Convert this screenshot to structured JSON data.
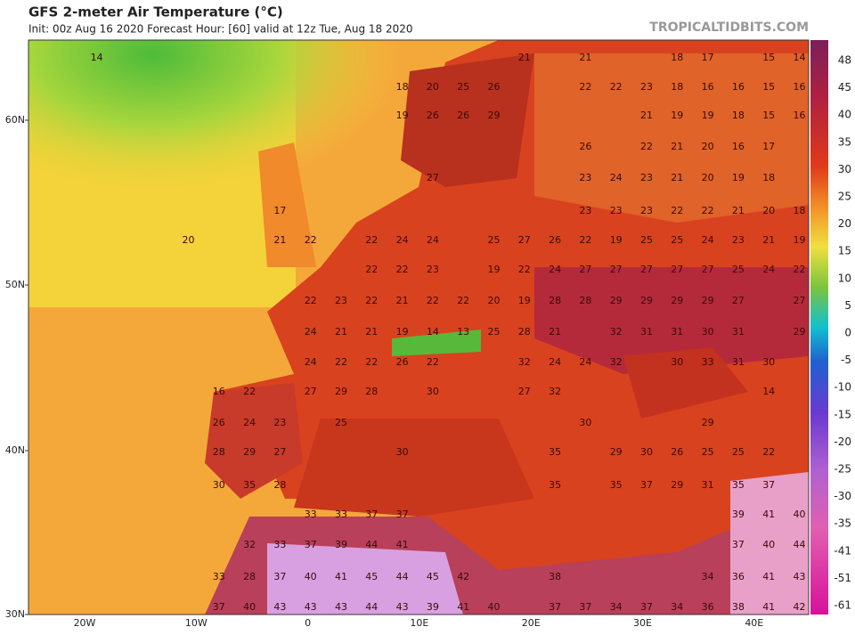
{
  "header": {
    "title": "GFS 2-meter Air Temperature (°C)",
    "subtitle": "Init: 00z Aug 16 2020   Forecast Hour: [60]   valid at 12z Tue, Aug 18 2020",
    "brand": "TROPICALTIDBITS.COM"
  },
  "map": {
    "lat_labels": [
      "60N",
      "50N",
      "40N",
      "30N"
    ],
    "lon_labels": [
      "20W",
      "10W",
      "0",
      "10E",
      "20E",
      "30E",
      "40E"
    ],
    "temperature_rows": [
      [
        null,
        null,
        14,
        null,
        null,
        null,
        null,
        null,
        null,
        null,
        null,
        null,
        null,
        null,
        null,
        null,
        21,
        null,
        21,
        null,
        null,
        18,
        17,
        null,
        15,
        14
      ],
      [
        null,
        null,
        null,
        null,
        null,
        null,
        null,
        null,
        null,
        null,
        null,
        null,
        18,
        20,
        25,
        26,
        null,
        null,
        22,
        22,
        23,
        18,
        16,
        16,
        15,
        16
      ],
      [
        null,
        null,
        null,
        null,
        null,
        null,
        null,
        null,
        null,
        null,
        null,
        null,
        19,
        26,
        26,
        29,
        null,
        null,
        null,
        null,
        21,
        19,
        19,
        18,
        15,
        16
      ],
      [
        null,
        null,
        null,
        null,
        null,
        null,
        null,
        null,
        null,
        null,
        null,
        null,
        null,
        null,
        null,
        null,
        null,
        null,
        26,
        null,
        22,
        21,
        20,
        16,
        17,
        null
      ],
      [
        null,
        null,
        null,
        null,
        null,
        null,
        null,
        null,
        null,
        null,
        null,
        null,
        null,
        27,
        null,
        null,
        null,
        null,
        23,
        24,
        23,
        21,
        20,
        19,
        18,
        null
      ],
      [
        null,
        null,
        null,
        null,
        null,
        null,
        null,
        null,
        17,
        null,
        null,
        null,
        null,
        null,
        null,
        null,
        null,
        null,
        23,
        23,
        23,
        22,
        22,
        21,
        20,
        18
      ],
      [
        null,
        null,
        null,
        null,
        null,
        20,
        null,
        null,
        21,
        22,
        null,
        22,
        24,
        24,
        null,
        25,
        27,
        26,
        22,
        19,
        25,
        25,
        24,
        23,
        21,
        19
      ],
      [
        null,
        null,
        null,
        null,
        null,
        null,
        null,
        null,
        null,
        null,
        null,
        22,
        22,
        23,
        null,
        19,
        22,
        24,
        27,
        27,
        27,
        27,
        27,
        25,
        24,
        22
      ],
      [
        null,
        null,
        null,
        null,
        null,
        null,
        null,
        null,
        null,
        22,
        23,
        22,
        21,
        22,
        22,
        20,
        19,
        28,
        28,
        29,
        29,
        29,
        29,
        27,
        null,
        27
      ],
      [
        null,
        null,
        null,
        null,
        null,
        null,
        null,
        null,
        null,
        24,
        21,
        21,
        19,
        14,
        13,
        25,
        28,
        21,
        null,
        32,
        31,
        31,
        30,
        31,
        null,
        29
      ],
      [
        null,
        null,
        null,
        null,
        null,
        null,
        null,
        null,
        null,
        24,
        22,
        22,
        26,
        22,
        null,
        null,
        32,
        24,
        24,
        32,
        null,
        30,
        33,
        31,
        30,
        null
      ],
      [
        null,
        null,
        null,
        null,
        null,
        null,
        16,
        22,
        null,
        27,
        29,
        28,
        null,
        30,
        null,
        null,
        27,
        32,
        null,
        null,
        null,
        null,
        null,
        null,
        14,
        null
      ],
      [
        null,
        null,
        null,
        null,
        null,
        null,
        26,
        24,
        23,
        null,
        25,
        null,
        null,
        null,
        null,
        null,
        null,
        null,
        30,
        null,
        null,
        null,
        29,
        null,
        null,
        null
      ],
      [
        null,
        null,
        null,
        null,
        null,
        null,
        28,
        29,
        27,
        null,
        null,
        null,
        30,
        null,
        null,
        null,
        null,
        35,
        null,
        29,
        30,
        26,
        25,
        25,
        22,
        null
      ],
      [
        null,
        null,
        null,
        null,
        null,
        null,
        30,
        35,
        28,
        null,
        null,
        null,
        null,
        null,
        null,
        null,
        null,
        35,
        null,
        35,
        37,
        29,
        31,
        35,
        37,
        null
      ],
      [
        null,
        null,
        null,
        null,
        null,
        null,
        null,
        null,
        null,
        33,
        33,
        37,
        37,
        null,
        null,
        null,
        null,
        null,
        null,
        null,
        null,
        null,
        null,
        39,
        41,
        40
      ],
      [
        null,
        null,
        null,
        null,
        null,
        null,
        null,
        32,
        33,
        37,
        39,
        44,
        41,
        null,
        null,
        null,
        null,
        null,
        null,
        null,
        null,
        null,
        null,
        37,
        40,
        44
      ],
      [
        null,
        null,
        null,
        null,
        null,
        null,
        33,
        28,
        37,
        40,
        41,
        45,
        44,
        45,
        42,
        null,
        null,
        38,
        null,
        null,
        null,
        null,
        34,
        36,
        41,
        43
      ],
      [
        null,
        null,
        null,
        null,
        null,
        null,
        37,
        40,
        43,
        43,
        43,
        44,
        43,
        39,
        41,
        40,
        null,
        37,
        37,
        34,
        37,
        34,
        36,
        38,
        41,
        42
      ]
    ]
  },
  "colorbar": {
    "labels": [
      48,
      45,
      40,
      35,
      30,
      25,
      20,
      15,
      10,
      5,
      0,
      -5,
      -10,
      -15,
      -20,
      -25,
      -30,
      -35,
      -41,
      -51,
      -61
    ]
  }
}
